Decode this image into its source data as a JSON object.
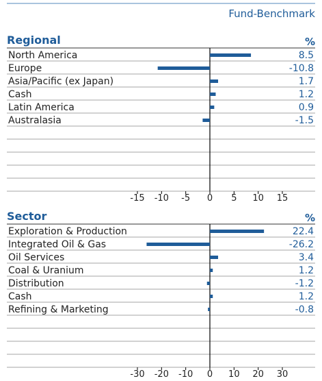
{
  "title": "Fund-Benchmark",
  "chart_data": [
    {
      "type": "bar",
      "title": "Regional",
      "unit": "%",
      "color": "#1f5c99",
      "categories": [
        "North America",
        "Europe",
        "Asia/Pacific (ex Japan)",
        "Cash",
        "Latin America",
        "Australasia"
      ],
      "values": [
        8.5,
        -10.8,
        1.7,
        1.2,
        0.9,
        -1.5
      ],
      "xlim": [
        -15,
        15
      ],
      "xticks": [
        -15,
        -10,
        -5,
        0,
        5,
        10,
        15
      ]
    },
    {
      "type": "bar",
      "title": "Sector",
      "unit": "%",
      "color": "#1f5c99",
      "categories": [
        "Exploration & Production",
        "Integrated Oil & Gas",
        "Oil Services",
        "Coal & Uranium",
        "Distribution",
        "Cash",
        "Refining & Marketing"
      ],
      "values": [
        22.4,
        -26.2,
        3.4,
        1.2,
        -1.2,
        1.2,
        -0.8
      ],
      "xlim": [
        -30,
        30
      ],
      "xticks": [
        -30,
        -20,
        -10,
        0,
        10,
        20,
        30
      ]
    }
  ]
}
